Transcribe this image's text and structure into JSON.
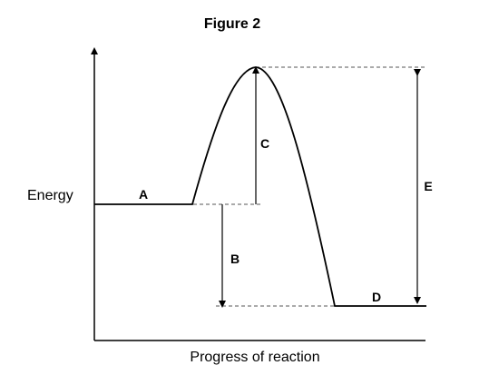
{
  "figure": {
    "title": "Figure 2"
  },
  "axes": {
    "y_label": "Energy",
    "x_label": "Progress of reaction"
  },
  "labels": {
    "a": "A",
    "b": "B",
    "c": "C",
    "d": "D",
    "e": "E"
  },
  "colors": {
    "line": "#000000",
    "guide": "#555555",
    "background": "#ffffff"
  }
}
